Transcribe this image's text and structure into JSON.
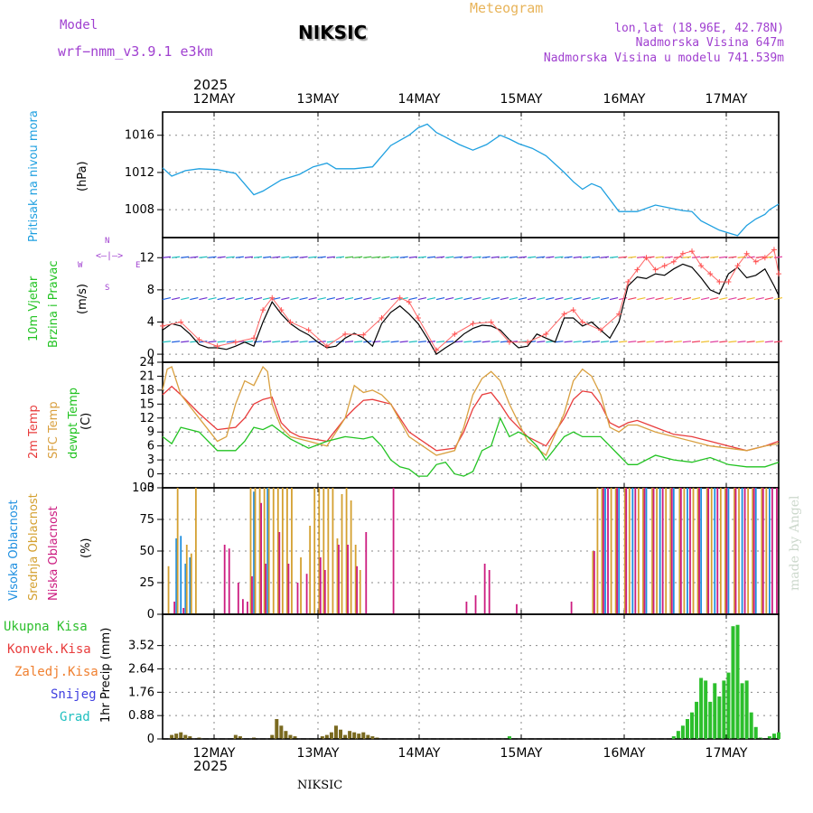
{
  "header": {
    "model_label": "Model",
    "model_name": "wrf−nmm_v3.9.1  e3km",
    "station": "NIKSIC",
    "product": "Meteogram",
    "lonlat": "lon,lat (18.96E, 42.78N)",
    "elevation": "Nadmorska Visina 647m",
    "model_elevation": "Nadmorska Visina u modelu 741.539m"
  },
  "colors": {
    "pressure": "#1fa0e0",
    "temp2m": "#e83c3c",
    "sfc": "#d9a040",
    "dewpt": "#22c322",
    "precip": "#2cbf2c",
    "precip_dark": "#7a6a20",
    "high": "#1e8fe0",
    "mid": "#d4a030",
    "low": "#cc1c80"
  },
  "time_axis": {
    "year": "2025",
    "days": [
      "12MAY",
      "13MAY",
      "14MAY",
      "15MAY",
      "16MAY",
      "17MAY"
    ],
    "start_hour": 0,
    "end_hour": 135
  },
  "footer": {
    "station": "NIKSIC",
    "watermark": "made by Angel"
  },
  "chart_data": [
    {
      "type": "line",
      "title": "Pritisak na nivou mora",
      "ylabel": "(hPa)",
      "ylim": [
        1005,
        1018.5
      ],
      "yticks": [
        1008,
        1012,
        1016
      ],
      "series": [
        {
          "name": "pressure",
          "x": [
            0,
            2,
            5,
            8,
            12,
            16,
            20,
            22,
            26,
            30,
            33,
            36,
            38,
            42,
            46,
            50,
            54,
            56,
            58,
            60,
            62,
            65,
            68,
            71,
            74,
            76,
            78,
            81,
            84,
            88,
            90,
            92,
            94,
            96,
            100,
            104,
            108,
            112,
            114,
            116,
            118,
            122,
            126,
            128,
            130,
            132,
            133,
            135
          ],
          "values": [
            1012.5,
            1011.6,
            1012.2,
            1012.4,
            1012.3,
            1011.9,
            1009.6,
            1010.0,
            1011.2,
            1011.8,
            1012.6,
            1013.0,
            1012.4,
            1012.4,
            1012.6,
            1014.9,
            1016.0,
            1016.8,
            1017.2,
            1016.3,
            1015.8,
            1015.0,
            1014.4,
            1015.0,
            1016.0,
            1015.6,
            1015.1,
            1014.6,
            1013.8,
            1012.0,
            1011.0,
            1010.2,
            1010.8,
            1010.4,
            1007.8,
            1007.8,
            1008.5,
            1008.1,
            1007.9,
            1007.8,
            1006.8,
            1005.8,
            1005.2,
            1006.3,
            1007.0,
            1007.5,
            1008.0,
            1008.6
          ]
        }
      ]
    },
    {
      "type": "line",
      "title": "10m Vjetar Brzina i Pravac",
      "ylabel": "(m/s)",
      "ylim": [
        -1,
        14.5
      ],
      "yticks": [
        0,
        4,
        8,
        12
      ],
      "compass": [
        "N",
        "S",
        "W",
        "E"
      ],
      "series": [
        {
          "name": "wind_speed",
          "x": [
            0,
            2,
            4,
            6,
            8,
            10,
            12,
            14,
            16,
            18,
            20,
            22,
            24,
            26,
            28,
            30,
            32,
            34,
            36,
            38,
            40,
            42,
            44,
            46,
            48,
            50,
            52,
            54,
            56,
            58,
            60,
            62,
            64,
            66,
            68,
            70,
            72,
            74,
            76,
            78,
            80,
            82,
            84,
            86,
            88,
            90,
            92,
            94,
            96,
            98,
            100,
            102,
            104,
            106,
            108,
            110,
            112,
            114,
            116,
            118,
            120,
            122,
            124,
            126,
            128,
            130,
            132,
            134,
            135
          ],
          "values": [
            3.0,
            3.8,
            3.5,
            2.5,
            1.2,
            0.8,
            0.8,
            0.6,
            1.0,
            1.5,
            1.0,
            4.0,
            6.5,
            5.0,
            3.8,
            3.0,
            2.4,
            1.5,
            0.8,
            1.0,
            2.0,
            2.6,
            2.0,
            1.0,
            3.8,
            5.2,
            6.0,
            5.0,
            3.8,
            2.0,
            0.0,
            0.8,
            1.5,
            2.5,
            3.2,
            3.6,
            3.5,
            3.0,
            1.8,
            0.8,
            1.0,
            2.5,
            2.0,
            1.5,
            4.5,
            4.5,
            3.5,
            4.0,
            3.0,
            2.0,
            4.0,
            8.5,
            9.6,
            9.4,
            10.0,
            9.8,
            10.6,
            11.2,
            10.8,
            9.5,
            8.0,
            7.5,
            10.0,
            10.8,
            9.5,
            9.8,
            10.6,
            8.5,
            7.3
          ]
        },
        {
          "name": "wind_gust",
          "x": [
            0,
            4,
            8,
            12,
            16,
            20,
            22,
            24,
            26,
            28,
            32,
            36,
            40,
            44,
            48,
            52,
            54,
            56,
            60,
            64,
            68,
            72,
            76,
            80,
            84,
            88,
            90,
            92,
            96,
            100,
            102,
            104,
            106,
            108,
            110,
            112,
            114,
            116,
            118,
            120,
            122,
            124,
            126,
            128,
            130,
            132,
            134,
            135
          ],
          "values": [
            3.5,
            4.0,
            1.8,
            1.0,
            1.5,
            2.0,
            5.5,
            7.0,
            5.5,
            4.0,
            3.0,
            1.0,
            2.5,
            2.4,
            4.5,
            7.0,
            6.5,
            4.5,
            0.5,
            2.5,
            3.8,
            4.0,
            1.5,
            1.5,
            2.5,
            5.0,
            5.5,
            4.0,
            3.0,
            5.0,
            9.0,
            10.5,
            12.0,
            10.5,
            11.0,
            11.5,
            12.5,
            12.8,
            11.0,
            10.0,
            9.0,
            9.0,
            11.0,
            12.5,
            11.5,
            12.0,
            13.0,
            10.0
          ]
        }
      ]
    },
    {
      "type": "line",
      "title": "2m Temp / SFC Temp / dewpt Temp",
      "ylabel": "(C)",
      "ylim": [
        -3,
        24
      ],
      "yticks": [
        -3,
        0,
        3,
        6,
        9,
        12,
        15,
        18,
        21,
        24
      ],
      "series": [
        {
          "name": "2m Temp",
          "x": [
            0,
            2,
            4,
            8,
            12,
            16,
            18,
            20,
            22,
            24,
            26,
            28,
            30,
            36,
            40,
            42,
            44,
            46,
            48,
            50,
            54,
            60,
            64,
            66,
            68,
            70,
            72,
            74,
            76,
            80,
            84,
            88,
            90,
            92,
            94,
            96,
            98,
            100,
            102,
            104,
            108,
            112,
            116,
            120,
            124,
            128,
            132,
            135
          ],
          "values": [
            17,
            18.8,
            17,
            13,
            9.5,
            10,
            12,
            15,
            16,
            16.5,
            11,
            9,
            8,
            7,
            12,
            14,
            15.8,
            16,
            15.5,
            15,
            9,
            5,
            5.5,
            9,
            14,
            17,
            17.5,
            15,
            12,
            8,
            6,
            12,
            16,
            17.8,
            17.5,
            15,
            11,
            10,
            11,
            11.5,
            10,
            8.5,
            8,
            7,
            6,
            5,
            6,
            7
          ]
        },
        {
          "name": "SFC Temp",
          "x": [
            0,
            1,
            2,
            4,
            8,
            12,
            14,
            16,
            18,
            20,
            22,
            23,
            24,
            26,
            28,
            32,
            36,
            40,
            42,
            44,
            46,
            48,
            50,
            54,
            60,
            64,
            66,
            68,
            70,
            72,
            74,
            76,
            80,
            84,
            88,
            90,
            92,
            94,
            96,
            98,
            100,
            102,
            104,
            108,
            112,
            116,
            120,
            124,
            128,
            132,
            135
          ],
          "values": [
            18,
            22.5,
            23,
            17,
            12,
            7,
            8,
            15,
            20,
            19,
            23,
            22,
            15,
            10,
            8,
            7,
            6,
            12,
            19,
            17.5,
            18,
            17,
            15,
            8,
            4,
            5,
            10,
            17,
            20.5,
            22,
            20,
            15,
            7,
            4,
            13,
            20,
            22.5,
            21,
            17,
            10,
            9,
            10.5,
            10.5,
            9,
            8,
            7,
            6,
            5.5,
            5,
            6,
            6.5
          ]
        },
        {
          "name": "dewpt Temp",
          "x": [
            0,
            2,
            4,
            8,
            12,
            16,
            18,
            20,
            22,
            24,
            28,
            32,
            36,
            40,
            44,
            46,
            48,
            50,
            52,
            54,
            56,
            58,
            60,
            62,
            64,
            66,
            68,
            70,
            72,
            74,
            76,
            78,
            80,
            82,
            84,
            88,
            90,
            92,
            94,
            96,
            98,
            100,
            102,
            104,
            108,
            112,
            116,
            120,
            124,
            128,
            132,
            135
          ],
          "values": [
            8,
            6.5,
            10,
            9,
            5,
            5,
            7,
            10,
            9.5,
            10.5,
            7.5,
            5.5,
            7,
            8,
            7.5,
            8,
            6,
            3,
            1.5,
            1,
            -0.5,
            -0.5,
            2,
            2.5,
            0,
            -0.5,
            0.5,
            5,
            6,
            12,
            8,
            9,
            8,
            6,
            3,
            8,
            9,
            8,
            8,
            8,
            6,
            4,
            2,
            2,
            4,
            3,
            2.5,
            3.5,
            2,
            1.5,
            1.5,
            2.5
          ]
        }
      ]
    },
    {
      "type": "bar",
      "title": "Visoka / Srednja / Niska Oblacnost",
      "ylabel": "(%)",
      "ylim": [
        0,
        100
      ],
      "yticks": [
        0,
        25,
        50,
        75,
        100
      ],
      "series": [
        {
          "name": "Visoka Oblacnost",
          "x": [
            3,
            4,
            5,
            6,
            20,
            23,
            97,
            100,
            103,
            106,
            109,
            112,
            115,
            118,
            121,
            124,
            127,
            130,
            133
          ],
          "values": [
            60,
            62,
            40,
            45,
            97,
            100,
            100,
            100,
            100,
            100,
            100,
            100,
            100,
            100,
            100,
            100,
            100,
            100,
            100
          ]
        },
        {
          "name": "Srednja Oblacnost",
          "x": [
            1,
            3,
            5,
            6,
            7,
            19,
            20,
            21,
            22,
            23,
            24,
            25,
            26,
            27,
            28,
            30,
            32,
            33,
            34,
            35,
            36,
            37,
            38,
            39,
            40,
            41,
            42,
            43,
            94,
            95,
            96,
            98,
            99,
            101,
            102,
            104,
            105,
            107,
            108,
            110,
            111,
            113,
            114,
            116,
            117,
            119,
            120,
            122,
            123,
            125,
            126,
            128,
            129,
            131,
            132
          ],
          "values": [
            38,
            100,
            55,
            48,
            100,
            100,
            100,
            100,
            100,
            100,
            100,
            100,
            100,
            100,
            100,
            45,
            70,
            100,
            100,
            100,
            100,
            100,
            60,
            95,
            100,
            90,
            55,
            35,
            50,
            100,
            100,
            100,
            100,
            100,
            100,
            100,
            100,
            100,
            100,
            100,
            100,
            100,
            100,
            100,
            100,
            100,
            100,
            100,
            100,
            100,
            100,
            100,
            100,
            100,
            100
          ]
        },
        {
          "name": "Niska Oblacnost",
          "x": [
            2,
            4,
            13,
            14,
            16,
            17,
            18,
            19,
            21,
            22,
            25,
            27,
            29,
            31,
            34,
            35,
            38,
            40,
            42,
            44,
            50,
            66,
            68,
            70,
            71,
            77,
            89,
            94,
            96,
            97,
            99,
            101,
            103,
            105,
            107,
            109,
            111,
            113,
            115,
            117,
            119,
            121,
            123,
            125,
            127,
            129,
            131,
            133,
            134
          ],
          "values": [
            10,
            5,
            55,
            52,
            25,
            12,
            10,
            30,
            88,
            40,
            65,
            40,
            25,
            32,
            45,
            35,
            55,
            55,
            38,
            65,
            100,
            10,
            15,
            40,
            35,
            8,
            10,
            50,
            100,
            100,
            100,
            100,
            100,
            100,
            100,
            100,
            100,
            100,
            100,
            100,
            100,
            100,
            100,
            100,
            100,
            100,
            100,
            100,
            100
          ]
        }
      ]
    },
    {
      "type": "bar",
      "title": "1hr Precip",
      "ylabel": "1hr Precip (mm)",
      "ylim": [
        0,
        4.7
      ],
      "yticks": [
        0,
        0.88,
        1.76,
        2.64,
        3.52
      ],
      "legend": [
        "Ukupna Kisa",
        "Konvek.Kisa",
        "Zaledj.Kisa",
        "Snijeg",
        "Grad"
      ],
      "series": [
        {
          "name": "Ukupna Kisa",
          "x": [
            2,
            3,
            4,
            5,
            6,
            8,
            16,
            17,
            20,
            24,
            25,
            26,
            27,
            28,
            29,
            35,
            36,
            37,
            38,
            39,
            40,
            41,
            42,
            43,
            44,
            45,
            46,
            47,
            76,
            112,
            113,
            114,
            115,
            116,
            117,
            118,
            119,
            120,
            121,
            122,
            123,
            124,
            125,
            126,
            127,
            128,
            129,
            130,
            131,
            133,
            134,
            135
          ],
          "values": [
            0.15,
            0.2,
            0.25,
            0.15,
            0.1,
            0.05,
            0.15,
            0.1,
            0.05,
            0.15,
            0.75,
            0.5,
            0.3,
            0.15,
            0.1,
            0.1,
            0.15,
            0.25,
            0.5,
            0.35,
            0.15,
            0.3,
            0.25,
            0.2,
            0.25,
            0.15,
            0.1,
            0.05,
            0.1,
            0.1,
            0.3,
            0.5,
            0.75,
            1.0,
            1.4,
            2.3,
            2.2,
            1.4,
            2.1,
            1.6,
            2.2,
            2.5,
            4.25,
            4.3,
            2.1,
            2.2,
            1.0,
            0.45,
            0.05,
            0.1,
            0.2,
            0.25
          ]
        }
      ]
    }
  ]
}
